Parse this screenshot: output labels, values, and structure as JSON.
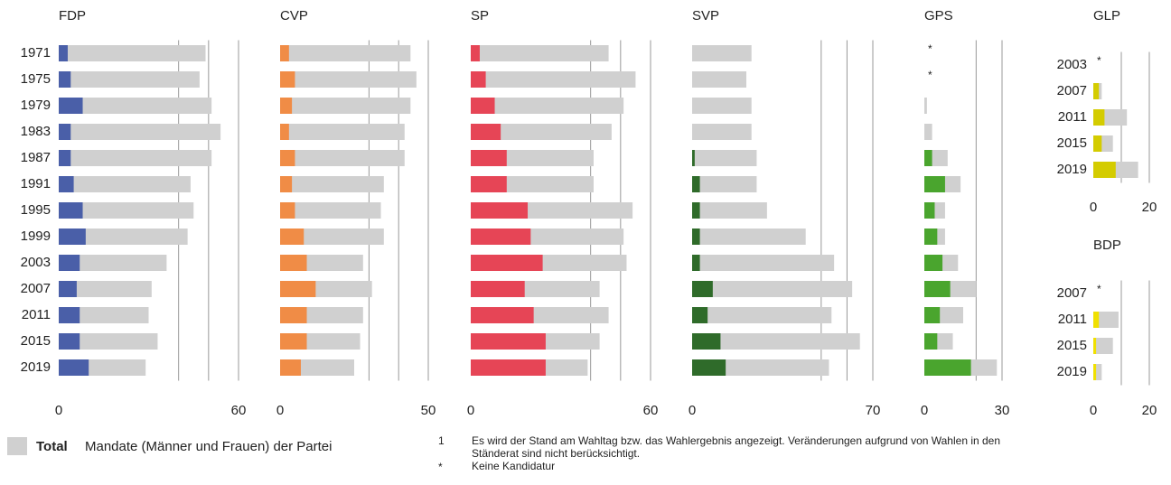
{
  "chart_data": [
    {
      "type": "bar",
      "title": "FDP",
      "categories": [
        "1971",
        "1975",
        "1979",
        "1983",
        "1987",
        "1991",
        "1995",
        "1999",
        "2003",
        "2007",
        "2011",
        "2015",
        "2019"
      ],
      "series": [
        {
          "color": "#d0d0d0",
          "values": [
            49,
            47,
            51,
            54,
            51,
            44,
            45,
            43,
            36,
            31,
            30,
            33,
            29
          ]
        },
        {
          "color": "#4a5fa8",
          "values": [
            3,
            4,
            8,
            4,
            4,
            5,
            8,
            9,
            7,
            6,
            7,
            7,
            10
          ]
        }
      ],
      "xlim": [
        0,
        60
      ],
      "xticks": [
        0,
        60
      ],
      "grid_lines": [
        40,
        50,
        60
      ]
    },
    {
      "type": "bar",
      "title": "CVP",
      "series": [
        {
          "color": "#d0d0d0",
          "values": [
            44,
            46,
            44,
            42,
            42,
            35,
            34,
            35,
            28,
            31,
            28,
            27,
            25
          ]
        },
        {
          "color": "#f08c46",
          "values": [
            3,
            5,
            4,
            3,
            5,
            4,
            5,
            8,
            9,
            12,
            9,
            9,
            7
          ]
        }
      ],
      "xlim": [
        0,
        50
      ],
      "xticks": [
        0,
        50
      ],
      "grid_lines": [
        30,
        40,
        50
      ]
    },
    {
      "type": "bar",
      "title": "SP",
      "series": [
        {
          "color": "#d0d0d0",
          "values": [
            46,
            55,
            51,
            47,
            41,
            41,
            54,
            51,
            52,
            43,
            46,
            43,
            39
          ]
        },
        {
          "color": "#e64556",
          "values": [
            3,
            5,
            8,
            10,
            12,
            12,
            19,
            20,
            24,
            18,
            21,
            25,
            25
          ]
        }
      ],
      "xlim": [
        0,
        60
      ],
      "xticks": [
        0,
        60
      ],
      "grid_lines": [
        40,
        50,
        60
      ]
    },
    {
      "type": "bar",
      "title": "SVP",
      "series": [
        {
          "color": "#d0d0d0",
          "values": [
            23,
            21,
            23,
            23,
            25,
            25,
            29,
            44,
            55,
            62,
            54,
            65,
            53
          ]
        },
        {
          "color": "#2f6b2a",
          "values": [
            0,
            0,
            0,
            0,
            1,
            3,
            3,
            3,
            3,
            8,
            6,
            11,
            13
          ]
        }
      ],
      "xlim": [
        0,
        70
      ],
      "xticks": [
        0,
        70
      ],
      "grid_lines": [
        50,
        60,
        70
      ]
    },
    {
      "type": "bar",
      "title": "GPS",
      "series": [
        {
          "color": "#d0d0d0",
          "values": [
            null,
            null,
            1,
            3,
            9,
            14,
            8,
            8,
            13,
            20,
            15,
            11,
            28
          ]
        },
        {
          "color": "#4aa52e",
          "values": [
            null,
            null,
            0,
            0,
            3,
            8,
            4,
            5,
            7,
            10,
            6,
            5,
            18
          ]
        }
      ],
      "xlim": [
        0,
        30
      ],
      "xticks": [
        0,
        30
      ],
      "grid_lines": [
        20,
        30
      ]
    },
    {
      "type": "bar",
      "title": "GLP",
      "categories": [
        "2003",
        "2007",
        "2011",
        "2015",
        "2019"
      ],
      "series": [
        {
          "color": "#d0d0d0",
          "values": [
            null,
            3,
            12,
            7,
            16
          ]
        },
        {
          "color": "#d4cc00",
          "values": [
            null,
            2,
            4,
            3,
            8
          ]
        }
      ],
      "xlim": [
        0,
        20
      ],
      "xticks": [
        0,
        20
      ],
      "grid_lines": [
        10,
        20
      ]
    },
    {
      "type": "bar",
      "title": "BDP",
      "categories": [
        "2007",
        "2011",
        "2015",
        "2019"
      ],
      "series": [
        {
          "color": "#d0d0d0",
          "values": [
            null,
            9,
            7,
            3
          ]
        },
        {
          "color": "#f0e000",
          "values": [
            null,
            2,
            1,
            1
          ]
        }
      ],
      "xlim": [
        0,
        20
      ],
      "xticks": [
        0,
        20
      ],
      "grid_lines": [
        10,
        20
      ]
    }
  ],
  "legend": {
    "label": "Total",
    "text": "Mandate (Männer und Frauen) der Partei"
  },
  "footnotes": [
    {
      "marker": "1",
      "text": "Es wird der Stand am Wahltag bzw. das Wahlergebnis angezeigt. Veränderungen aufgrund von Wahlen in den",
      "text2": "Ständerat sind nicht berücksichtigt."
    },
    {
      "marker": "*",
      "text": "Keine Kandidatur"
    }
  ]
}
